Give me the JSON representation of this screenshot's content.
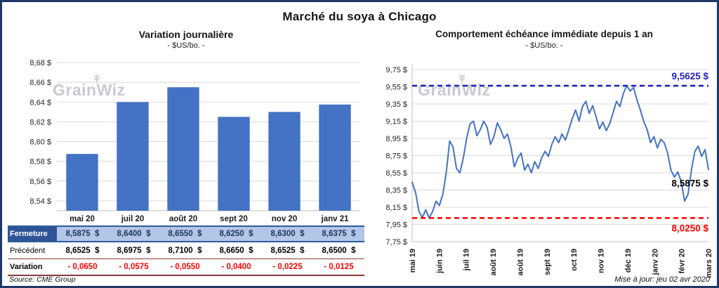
{
  "page": {
    "title": "Marché du soya à Chicago",
    "watermark": "GrainWiz",
    "source_note": "Source: CME Group",
    "update_note": "Mise à jour: jeu 02 avr 2020"
  },
  "chart_data": [
    {
      "type": "bar",
      "title": "Variation journalière",
      "subtitle": "- $US/bo. -",
      "categories": [
        "mai 20",
        "juil 20",
        "août 20",
        "sept 20",
        "nov 20",
        "janv 21"
      ],
      "values": [
        8.5875,
        8.64,
        8.655,
        8.625,
        8.63,
        8.6375
      ],
      "ylim": [
        8.53,
        8.685
      ],
      "yticks": [
        8.54,
        8.56,
        8.58,
        8.6,
        8.62,
        8.64,
        8.66,
        8.68
      ],
      "grid": true,
      "legend": "none",
      "bar_color": "#4472C4"
    },
    {
      "type": "line",
      "title": "Comportement échéance immédiate depuis 1 an",
      "subtitle": "- $US/bo. -",
      "x_tick_labels": [
        "mai 19",
        "juin 19",
        "juil 19",
        "août 19",
        "août 19",
        "sept 19",
        "oct 19",
        "nov 19",
        "déc 19",
        "janv 20",
        "févr 20",
        "mars 20"
      ],
      "values": [
        8.44,
        8.32,
        8.1,
        8.03,
        8.12,
        8.025,
        8.1,
        8.22,
        8.17,
        8.3,
        8.55,
        8.92,
        8.85,
        8.6,
        8.55,
        8.72,
        8.95,
        9.12,
        9.15,
        8.98,
        9.05,
        9.15,
        9.08,
        8.88,
        8.97,
        9.13,
        9.05,
        8.95,
        9.0,
        8.85,
        8.62,
        8.72,
        8.78,
        8.58,
        8.65,
        8.55,
        8.68,
        8.6,
        8.72,
        8.8,
        8.74,
        8.88,
        8.97,
        8.9,
        9.0,
        8.93,
        9.05,
        9.18,
        9.28,
        9.15,
        9.32,
        9.38,
        9.24,
        9.33,
        9.2,
        9.06,
        9.14,
        9.04,
        9.12,
        9.25,
        9.38,
        9.32,
        9.47,
        9.5625,
        9.5,
        9.54,
        9.4,
        9.28,
        9.15,
        9.05,
        8.9,
        8.97,
        8.84,
        8.94,
        8.9,
        8.78,
        8.58,
        8.5,
        8.56,
        8.45,
        8.22,
        8.3,
        8.58,
        8.8,
        8.86,
        8.74,
        8.82,
        8.5875
      ],
      "ylim": [
        7.75,
        9.75
      ],
      "yticks": [
        7.75,
        7.95,
        8.15,
        8.35,
        8.55,
        8.75,
        8.95,
        9.15,
        9.35,
        9.55,
        9.75
      ],
      "grid": true,
      "legend": "none",
      "line_color": "#4472C4",
      "hlines": [
        {
          "value": 9.5625,
          "label": "9,5625 $",
          "color": "#2121BE",
          "style": "dashed",
          "label_pos": "above-right"
        },
        {
          "value": 8.025,
          "label": "8,0250 $",
          "color": "#FF0000",
          "style": "dashed",
          "label_pos": "below-right"
        }
      ],
      "last_point_label": {
        "value": 8.5875,
        "label": "8,5875 $",
        "color": "#000000"
      }
    }
  ],
  "table": {
    "rows": [
      {
        "label": "Fermeture",
        "values": [
          "8,5875  $",
          "8,6400  $",
          "8,6550  $",
          "8,6250  $",
          "8,6300  $",
          "8,6375  $"
        ]
      },
      {
        "label": "Précédent",
        "values": [
          "8,6525  $",
          "8,6975  $",
          "8,7100  $",
          "8,6650  $",
          "8,6525  $",
          "8,6500  $"
        ]
      },
      {
        "label": "Variation",
        "values": [
          "- 0,0650",
          "- 0,0575",
          "- 0,0550",
          "- 0,0400",
          "- 0,0225",
          "- 0,0125"
        ]
      }
    ]
  }
}
